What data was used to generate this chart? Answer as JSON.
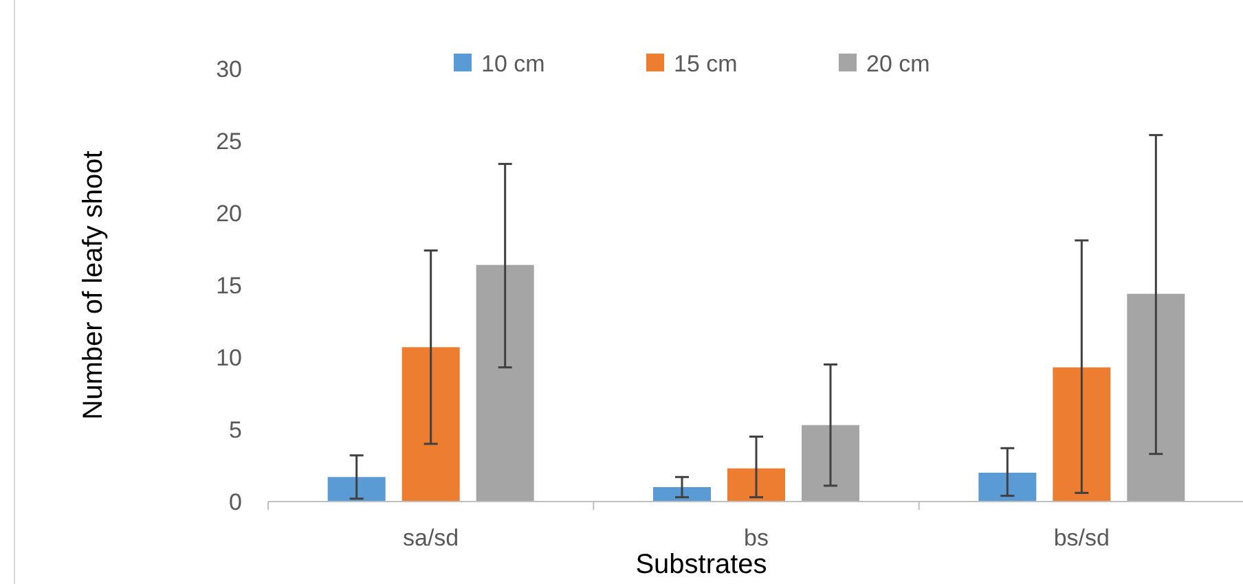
{
  "chart_data": {
    "type": "bar",
    "xlabel": "Substrates",
    "ylabel": "Number of leafy shoot",
    "categories": [
      "sa/sd",
      "bs",
      "bs/sd"
    ],
    "series": [
      {
        "name": "10 cm",
        "color": "#5b9bd5",
        "values": [
          1.7,
          1.0,
          2.0
        ],
        "errors": [
          [
            0.2,
            3.2
          ],
          [
            0.3,
            1.7
          ],
          [
            0.4,
            3.7
          ]
        ]
      },
      {
        "name": "15 cm",
        "color": "#ed7d31",
        "values": [
          10.7,
          2.3,
          9.3
        ],
        "errors": [
          [
            4.0,
            17.4
          ],
          [
            0.3,
            4.5
          ],
          [
            0.6,
            18.1
          ]
        ]
      },
      {
        "name": "20 cm",
        "color": "#a5a5a5",
        "values": [
          16.4,
          5.3,
          14.4
        ],
        "errors": [
          [
            9.3,
            23.4
          ],
          [
            1.1,
            9.5
          ],
          [
            3.3,
            25.4
          ]
        ]
      }
    ],
    "ylim": [
      0,
      30
    ],
    "yticks": [
      0,
      5,
      10,
      15,
      20,
      25,
      30
    ],
    "legend": "top"
  }
}
